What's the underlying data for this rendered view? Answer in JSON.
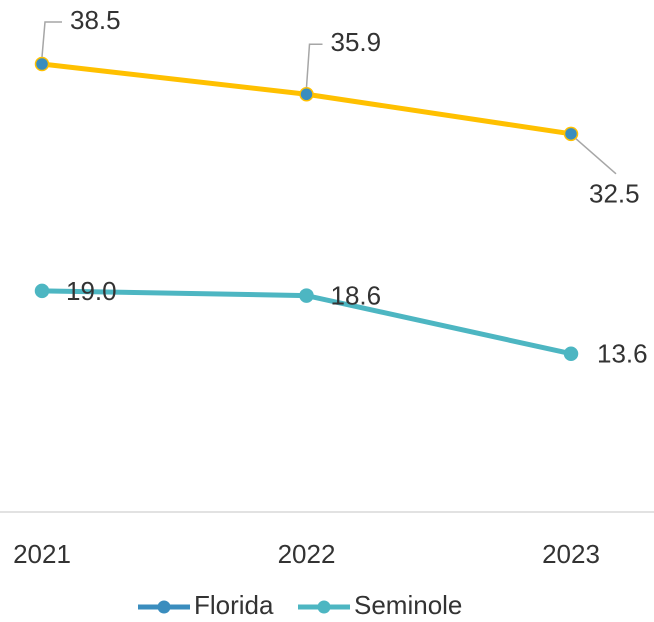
{
  "chart_data": {
    "type": "line",
    "categories": [
      "2021",
      "2022",
      "2023"
    ],
    "series": [
      {
        "name": "Florida",
        "color": "#3a8dbe",
        "line_color": "#ffc000",
        "values": [
          38.5,
          35.9,
          32.5
        ]
      },
      {
        "name": "Seminole",
        "color": "#4db6c2",
        "values": [
          19.0,
          18.6,
          13.6
        ],
        "value_labels": [
          "19.0",
          "18.6",
          "13.6"
        ]
      }
    ],
    "ylim": [
      0,
      44
    ]
  }
}
